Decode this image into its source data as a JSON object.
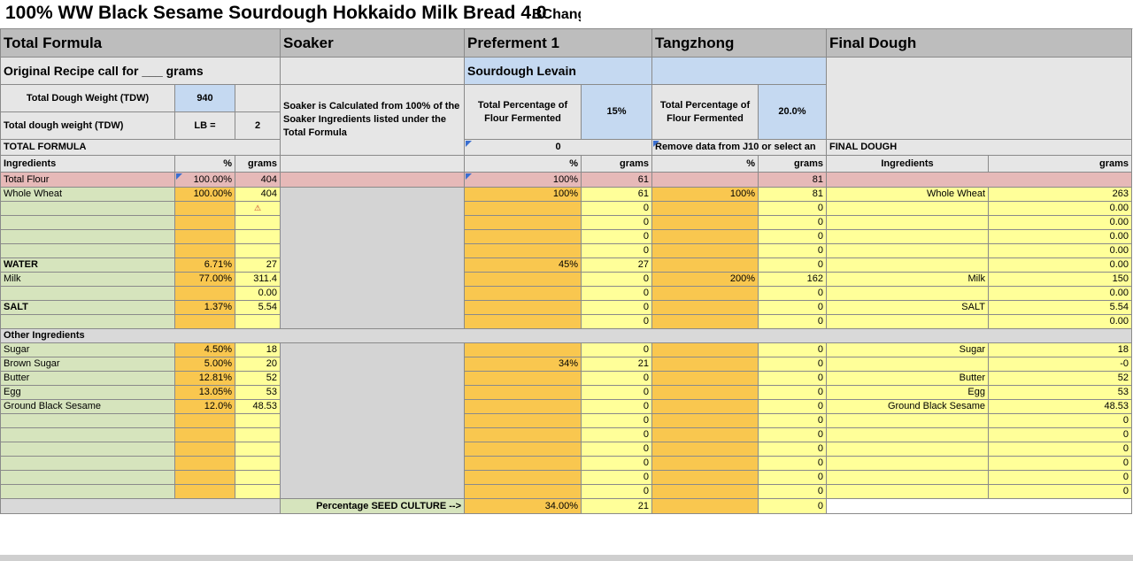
{
  "title": {
    "main": "100% WW Black Sesame Sourdough Hokkaido Milk Bread 4.0",
    "author": "BChang"
  },
  "headers": {
    "total_formula": "Total Formula",
    "soaker": "Soaker",
    "preferment": "Preferment 1",
    "tangzhong": "Tangzhong",
    "final_dough": "Final Dough"
  },
  "original_recipe": "Original Recipe call for ___ grams",
  "sourdough_levain": "Sourdough Levain",
  "tdw_label": "Total Dough Weight (TDW)",
  "tdw_value": "940",
  "tdw_label2": "Total dough weight (TDW)",
  "lb_label": "LB =",
  "lb_value": "2",
  "soaker_note": "Soaker is Calculated from 100% of the Soaker Ingredients listed under the Total Formula",
  "pf_pct_label": "Total Percentage of Flour Fermented",
  "pf_pct_value": "15%",
  "tz_pct_label": "Total Percentage of Flour Fermented",
  "tz_pct_value": "20.0%",
  "total_formula_caps": "TOTAL FORMULA",
  "pf_zero": "0",
  "tz_note": "Remove data from J10 or select an",
  "final_dough_caps": "FINAL DOUGH",
  "col": {
    "ingredients": "Ingredients",
    "pct": "%",
    "grams": "grams"
  },
  "flour_row": {
    "label": "Total Flour",
    "pct": "100.00%",
    "grams": "404",
    "pf_pct": "100%",
    "pf_grams": "61",
    "tz_grams": "81"
  },
  "rows1": [
    {
      "name": "Whole Wheat",
      "pct": "100.00%",
      "grams": "404",
      "pf_pct": "100%",
      "pf_g": "61",
      "tz_pct": "100%",
      "tz_g": "81",
      "fd_name": "Whole Wheat",
      "fd_g": "263"
    },
    {
      "name": "",
      "pct": "",
      "grams": "",
      "pf_pct": "",
      "pf_g": "0",
      "tz_pct": "",
      "tz_g": "0",
      "fd_name": "",
      "fd_g": "0.00"
    },
    {
      "name": "",
      "pct": "",
      "grams": "",
      "pf_pct": "",
      "pf_g": "0",
      "tz_pct": "",
      "tz_g": "0",
      "fd_name": "",
      "fd_g": "0.00"
    },
    {
      "name": "",
      "pct": "",
      "grams": "",
      "pf_pct": "",
      "pf_g": "0",
      "tz_pct": "",
      "tz_g": "0",
      "fd_name": "",
      "fd_g": "0.00"
    },
    {
      "name": "",
      "pct": "",
      "grams": "",
      "pf_pct": "",
      "pf_g": "0",
      "tz_pct": "",
      "tz_g": "0",
      "fd_name": "",
      "fd_g": "0.00"
    }
  ],
  "rows2": [
    {
      "name": "WATER",
      "pct": "6.71%",
      "grams": "27",
      "pf_pct": "45%",
      "pf_g": "27",
      "tz_pct": "",
      "tz_g": "0",
      "fd_name": "",
      "fd_g": "0.00"
    },
    {
      "name": "Milk",
      "pct": "77.00%",
      "grams": "311.4",
      "pf_pct": "",
      "pf_g": "0",
      "tz_pct": "200%",
      "tz_g": "162",
      "fd_name": "Milk",
      "fd_g": "150"
    },
    {
      "name": "",
      "pct": "",
      "grams": "0.00",
      "pf_pct": "",
      "pf_g": "0",
      "tz_pct": "",
      "tz_g": "0",
      "fd_name": "",
      "fd_g": "0.00"
    }
  ],
  "rows3": [
    {
      "name": "SALT",
      "pct": "1.37%",
      "grams": "5.54",
      "pf_pct": "",
      "pf_g": "0",
      "tz_pct": "",
      "tz_g": "0",
      "fd_name": "SALT",
      "fd_g": "5.54"
    },
    {
      "name": "",
      "pct": "",
      "grams": "",
      "pf_pct": "",
      "pf_g": "0",
      "tz_pct": "",
      "tz_g": "0",
      "fd_name": "",
      "fd_g": "0.00"
    }
  ],
  "other_ingredients": "Other Ingredients",
  "rows4": [
    {
      "name": "Sugar",
      "pct": "4.50%",
      "grams": "18",
      "pf_pct": "",
      "pf_g": "0",
      "tz_pct": "",
      "tz_g": "0",
      "fd_name": "Sugar",
      "fd_g": "18"
    },
    {
      "name": "Brown Sugar",
      "pct": "5.00%",
      "grams": "20",
      "pf_pct": "34%",
      "pf_g": "21",
      "tz_pct": "",
      "tz_g": "0",
      "fd_name": "",
      "fd_g": "-0"
    },
    {
      "name": "Butter",
      "pct": "12.81%",
      "grams": "52",
      "pf_pct": "",
      "pf_g": "0",
      "tz_pct": "",
      "tz_g": "0",
      "fd_name": "Butter",
      "fd_g": "52"
    },
    {
      "name": "Egg",
      "pct": "13.05%",
      "grams": "53",
      "pf_pct": "",
      "pf_g": "0",
      "tz_pct": "",
      "tz_g": "0",
      "fd_name": "Egg",
      "fd_g": "53"
    },
    {
      "name": "Ground Black Sesame",
      "pct": "12.0%",
      "grams": "48.53",
      "pf_pct": "",
      "pf_g": "0",
      "tz_pct": "",
      "tz_g": "0",
      "fd_name": "Ground Black Sesame",
      "fd_g": "48.53"
    },
    {
      "name": "",
      "pct": "",
      "grams": "",
      "pf_pct": "",
      "pf_g": "0",
      "tz_pct": "",
      "tz_g": "0",
      "fd_name": "",
      "fd_g": "0"
    },
    {
      "name": "",
      "pct": "",
      "grams": "",
      "pf_pct": "",
      "pf_g": "0",
      "tz_pct": "",
      "tz_g": "0",
      "fd_name": "",
      "fd_g": "0"
    },
    {
      "name": "",
      "pct": "",
      "grams": "",
      "pf_pct": "",
      "pf_g": "0",
      "tz_pct": "",
      "tz_g": "0",
      "fd_name": "",
      "fd_g": "0"
    },
    {
      "name": "",
      "pct": "",
      "grams": "",
      "pf_pct": "",
      "pf_g": "0",
      "tz_pct": "",
      "tz_g": "0",
      "fd_name": "",
      "fd_g": "0"
    },
    {
      "name": "",
      "pct": "",
      "grams": "",
      "pf_pct": "",
      "pf_g": "0",
      "tz_pct": "",
      "tz_g": "0",
      "fd_name": "",
      "fd_g": "0"
    },
    {
      "name": "",
      "pct": "",
      "grams": "",
      "pf_pct": "",
      "pf_g": "0",
      "tz_pct": "",
      "tz_g": "0",
      "fd_name": "",
      "fd_g": "0"
    }
  ],
  "seed_culture": {
    "label": "Percentage SEED CULTURE -->",
    "pct": "34.00%",
    "grams": "21",
    "tz_g": "0"
  },
  "warning_icon": "warning-triangle-icon"
}
